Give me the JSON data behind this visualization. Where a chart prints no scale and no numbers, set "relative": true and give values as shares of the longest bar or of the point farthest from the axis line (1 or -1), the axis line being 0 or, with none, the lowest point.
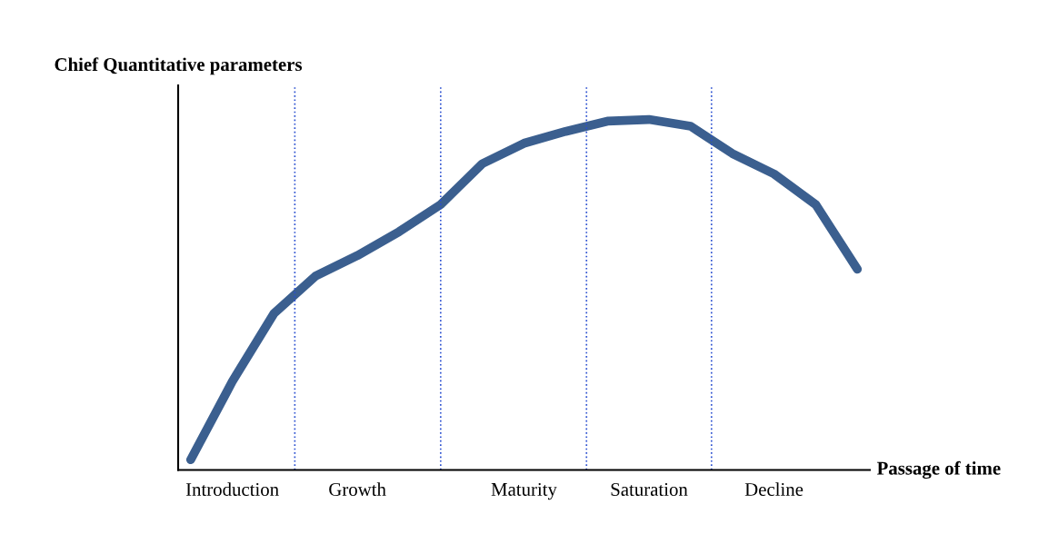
{
  "chart_data": {
    "type": "line",
    "relative": true,
    "xlabel": "Passage of time",
    "ylabel": "Chief Quantitative parameters",
    "categories": [
      null,
      "Introduction",
      null,
      null,
      "Growth",
      null,
      null,
      null,
      "Maturity",
      null,
      null,
      "Saturation",
      null,
      null,
      "Decline",
      null,
      null
    ],
    "series": [
      {
        "color": "#3b5f8f",
        "values": [
          0,
          0.23,
          0.43,
          0.54,
          0.6,
          0.67,
          0.75,
          0.87,
          0.93,
          0.965,
          0.995,
          1.0,
          0.98,
          0.9,
          0.84,
          0.75,
          0.56
        ]
      }
    ],
    "marker": "none",
    "line_style": "solid"
  }
}
